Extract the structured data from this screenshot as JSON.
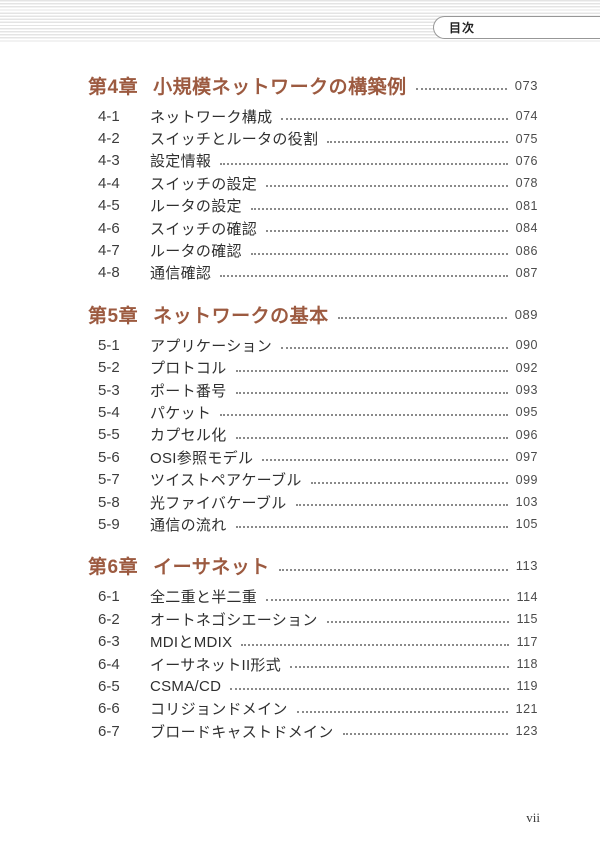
{
  "header": {
    "tab_label": "目次"
  },
  "footer": {
    "page_number": "vii"
  },
  "colors": {
    "accent": "#9c5a40",
    "stripe": "#e4e4e4",
    "text": "#2f2f2f",
    "pagenum": "#4b4b4b",
    "leader": "#8a8a8a",
    "tab_border": "#979797"
  },
  "toc": {
    "chapters": [
      {
        "label": "第4章",
        "title": "小規模ネットワークの構築例",
        "page": "073",
        "sections": [
          {
            "num": "4-1",
            "title": "ネットワーク構成",
            "page": "074"
          },
          {
            "num": "4-2",
            "title": "スイッチとルータの役割",
            "page": "075"
          },
          {
            "num": "4-3",
            "title": "設定情報",
            "page": "076"
          },
          {
            "num": "4-4",
            "title": "スイッチの設定",
            "page": "078"
          },
          {
            "num": "4-5",
            "title": "ルータの設定",
            "page": "081"
          },
          {
            "num": "4-6",
            "title": "スイッチの確認",
            "page": "084"
          },
          {
            "num": "4-7",
            "title": "ルータの確認",
            "page": "086"
          },
          {
            "num": "4-8",
            "title": "通信確認",
            "page": "087"
          }
        ]
      },
      {
        "label": "第5章",
        "title": "ネットワークの基本",
        "page": "089",
        "sections": [
          {
            "num": "5-1",
            "title": "アプリケーション",
            "page": "090"
          },
          {
            "num": "5-2",
            "title": "プロトコル",
            "page": "092"
          },
          {
            "num": "5-3",
            "title": "ポート番号",
            "page": "093"
          },
          {
            "num": "5-4",
            "title": "パケット",
            "page": "095"
          },
          {
            "num": "5-5",
            "title": "カプセル化",
            "page": "096"
          },
          {
            "num": "5-6",
            "title": "OSI参照モデル",
            "page": "097"
          },
          {
            "num": "5-7",
            "title": "ツイストペアケーブル",
            "page": "099"
          },
          {
            "num": "5-8",
            "title": "光ファイバケーブル",
            "page": "103"
          },
          {
            "num": "5-9",
            "title": "通信の流れ",
            "page": "105"
          }
        ]
      },
      {
        "label": "第6章",
        "title": "イーサネット",
        "page": "113",
        "sections": [
          {
            "num": "6-1",
            "title": "全二重と半二重",
            "page": "114"
          },
          {
            "num": "6-2",
            "title": "オートネゴシエーション",
            "page": "115"
          },
          {
            "num": "6-3",
            "title": "MDIとMDIX",
            "page": "117"
          },
          {
            "num": "6-4",
            "title": "イーサネットII形式",
            "page": "118"
          },
          {
            "num": "6-5",
            "title": "CSMA/CD",
            "page": "119"
          },
          {
            "num": "6-6",
            "title": "コリジョンドメイン",
            "page": "121"
          },
          {
            "num": "6-7",
            "title": "ブロードキャストドメイン",
            "page": "123"
          }
        ]
      }
    ]
  }
}
